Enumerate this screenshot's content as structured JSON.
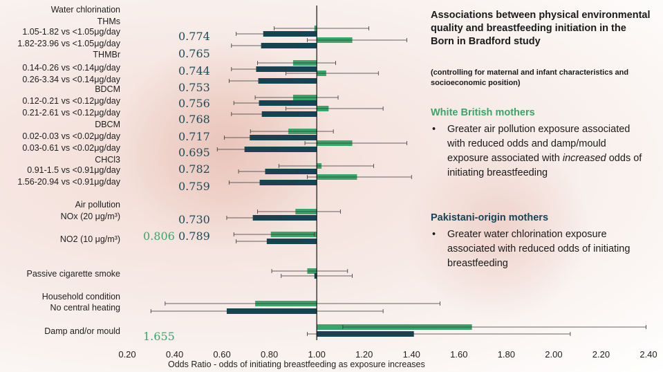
{
  "chart_data": {
    "type": "bar",
    "orientation": "horizontal",
    "title": "Associations between physical environmental quality and breastfeeding initiation in the Born in Bradford study",
    "subtitle": "(controlling for maternal and infant characteristics and socioeconomic position)",
    "xlabel": "Odds Ratio - odds of initiating breastfeeding as exposure increases",
    "xlim": [
      0.2,
      2.4
    ],
    "baseline": 1.0,
    "xticks": [
      "0.20",
      "0.40",
      "0.60",
      "0.80",
      "1.00",
      "1.20",
      "1.40",
      "1.60",
      "1.80",
      "2.00",
      "2.20",
      "2.40"
    ],
    "colors": {
      "green": "#3aa56b",
      "dark": "#174454"
    },
    "series_colors_meaning": "green = White British mothers, dark = Pakistani-origin mothers",
    "labels": [
      {
        "text": "Water chlorination"
      },
      {
        "text": "THMs"
      },
      {
        "text": "1.05-1.82 vs <1.05μg/day"
      },
      {
        "text": "1.82-23.96 vs <1.05μg/day"
      },
      {
        "text": "THMBr"
      },
      {
        "text": "0.14-0.26 vs <0.14μg/day"
      },
      {
        "text": "0.26-3.34 vs <0.14μg/day"
      },
      {
        "text": "BDCM"
      },
      {
        "text": "0.12-0.21 vs <0.12μg/day"
      },
      {
        "text": "0.21-2.61 vs <0.12μg/day"
      },
      {
        "text": "DBCM"
      },
      {
        "text": "0.02-0.03 vs <0.02μg/day"
      },
      {
        "text": "0.03-0.61 vs <0.02μg/day"
      },
      {
        "text": "CHCl3"
      },
      {
        "text": "0.91-1.5 vs <0.91μg/day"
      },
      {
        "text": "1.56-20.94 vs <0.91μg/day"
      },
      {
        "text": "Air pollution"
      },
      {
        "text": "NOx (20 μg/m³)"
      },
      {
        "text": "NO2 (10 μg/m³)"
      },
      {
        "text": "Passive cigarette smoke"
      },
      {
        "text": "Household condition"
      },
      {
        "text": "No central heating"
      },
      {
        "text": "Damp and/or mould"
      }
    ],
    "or_values": [
      {
        "text": "0.774"
      },
      {
        "text": "0.765"
      },
      {
        "text": "0.744"
      },
      {
        "text": "0.753"
      },
      {
        "text": "0.756"
      },
      {
        "text": "0.768"
      },
      {
        "text": "0.717"
      },
      {
        "text": "0.695"
      },
      {
        "text": "0.782"
      },
      {
        "text": "0.759"
      },
      {
        "text": "0.730"
      },
      {
        "text": "0.789"
      },
      {
        "text": "0.806",
        "green": true
      },
      {
        "text": "1.655",
        "green": true
      }
    ],
    "bars": [
      {
        "exposure": "THMs 1.05-1.82 vs <1.05μg/day",
        "series": "green",
        "or": 0.99,
        "ci": [
          0.82,
          1.22
        ]
      },
      {
        "exposure": "THMs 1.05-1.82 vs <1.05μg/day",
        "series": "dark",
        "or": 0.774,
        "ci": [
          0.66,
          0.93
        ]
      },
      {
        "exposure": "THMs 1.82-23.96 vs <1.05μg/day",
        "series": "green",
        "or": 1.15,
        "ci": [
          0.96,
          1.38
        ]
      },
      {
        "exposure": "THMs 1.82-23.96 vs <1.05μg/day",
        "series": "dark",
        "or": 0.765,
        "ci": [
          0.64,
          0.92
        ]
      },
      {
        "exposure": "THMBr 0.14-0.26 vs <0.14μg/day",
        "series": "green",
        "or": 0.9,
        "ci": [
          0.75,
          1.08
        ]
      },
      {
        "exposure": "THMBr 0.14-0.26 vs <0.14μg/day",
        "series": "dark",
        "or": 0.744,
        "ci": [
          0.64,
          0.87
        ]
      },
      {
        "exposure": "THMBr 0.26-3.34 vs <0.14μg/day",
        "series": "green",
        "or": 1.04,
        "ci": [
          0.87,
          1.26
        ]
      },
      {
        "exposure": "THMBr 0.26-3.34 vs <0.14μg/day",
        "series": "dark",
        "or": 0.753,
        "ci": [
          0.63,
          0.9
        ]
      },
      {
        "exposure": "BDCM 0.12-0.21 vs <0.12μg/day",
        "series": "green",
        "or": 0.9,
        "ci": [
          0.74,
          1.09
        ]
      },
      {
        "exposure": "BDCM 0.12-0.21 vs <0.12μg/day",
        "series": "dark",
        "or": 0.756,
        "ci": [
          0.65,
          0.89
        ]
      },
      {
        "exposure": "BDCM 0.21-2.61 vs <0.12μg/day",
        "series": "green",
        "or": 1.05,
        "ci": [
          0.87,
          1.28
        ]
      },
      {
        "exposure": "BDCM 0.21-2.61 vs <0.12μg/day",
        "series": "dark",
        "or": 0.768,
        "ci": [
          0.64,
          0.92
        ]
      },
      {
        "exposure": "DBCM 0.02-0.03 vs <0.02μg/day",
        "series": "green",
        "or": 0.88,
        "ci": [
          0.72,
          1.07
        ]
      },
      {
        "exposure": "DBCM 0.02-0.03 vs <0.02μg/day",
        "series": "dark",
        "or": 0.717,
        "ci": [
          0.61,
          0.84
        ]
      },
      {
        "exposure": "DBCM 0.03-0.61 vs <0.02μg/day",
        "series": "green",
        "or": 1.15,
        "ci": [
          0.95,
          1.38
        ]
      },
      {
        "exposure": "DBCM 0.03-0.61 vs <0.02μg/day",
        "series": "dark",
        "or": 0.695,
        "ci": [
          0.58,
          0.83
        ]
      },
      {
        "exposure": "CHCl3 0.91-1.5 vs <0.91μg/day",
        "series": "green",
        "or": 1.02,
        "ci": [
          0.84,
          1.24
        ]
      },
      {
        "exposure": "CHCl3 0.91-1.5 vs <0.91μg/day",
        "series": "dark",
        "or": 0.782,
        "ci": [
          0.67,
          0.92
        ]
      },
      {
        "exposure": "CHCl3 1.56-20.94 vs <0.91μg/day",
        "series": "green",
        "or": 1.17,
        "ci": [
          0.96,
          1.4
        ]
      },
      {
        "exposure": "CHCl3 1.56-20.94 vs <0.91μg/day",
        "series": "dark",
        "or": 0.759,
        "ci": [
          0.63,
          0.9
        ]
      },
      {
        "exposure": "NOx (20 μg/m³)",
        "series": "green",
        "or": 0.91,
        "ci": [
          0.75,
          1.1
        ]
      },
      {
        "exposure": "NOx (20 μg/m³)",
        "series": "dark",
        "or": 0.73,
        "ci": [
          0.62,
          0.85
        ]
      },
      {
        "exposure": "NO2 (10 μg/m³)",
        "series": "green",
        "or": 0.806,
        "ci": [
          0.65,
          0.99
        ]
      },
      {
        "exposure": "NO2 (10 μg/m³)",
        "series": "dark",
        "or": 0.789,
        "ci": [
          0.66,
          0.93
        ]
      },
      {
        "exposure": "Passive cigarette smoke",
        "series": "green",
        "or": 0.96,
        "ci": [
          0.81,
          1.13
        ]
      },
      {
        "exposure": "Passive cigarette smoke",
        "series": "dark",
        "or": 0.99,
        "ci": [
          0.85,
          1.15
        ]
      },
      {
        "exposure": "No central heating",
        "series": "green",
        "or": 0.74,
        "ci": [
          0.36,
          1.52
        ]
      },
      {
        "exposure": "No central heating",
        "series": "dark",
        "or": 0.62,
        "ci": [
          0.3,
          1.28
        ]
      },
      {
        "exposure": "Damp and/or mould",
        "series": "green",
        "or": 1.655,
        "ci": [
          1.11,
          2.39
        ]
      },
      {
        "exposure": "Damp and/or mould",
        "series": "dark",
        "or": 1.41,
        "ci": [
          0.96,
          2.07
        ]
      }
    ]
  },
  "panel": {
    "white_british": {
      "heading": "White British mothers",
      "bullet_part1": "Greater air pollution exposure associated with reduced odds and damp/mould exposure associated with ",
      "bullet_emph": "increased",
      "bullet_part2": " odds of initiating breastfeeding"
    },
    "pakistani": {
      "heading": "Pakistani-origin mothers",
      "bullet": "Greater water chlorination exposure associated with reduced odds of initiating breastfeeding"
    },
    "bullet_glyph": "•"
  }
}
